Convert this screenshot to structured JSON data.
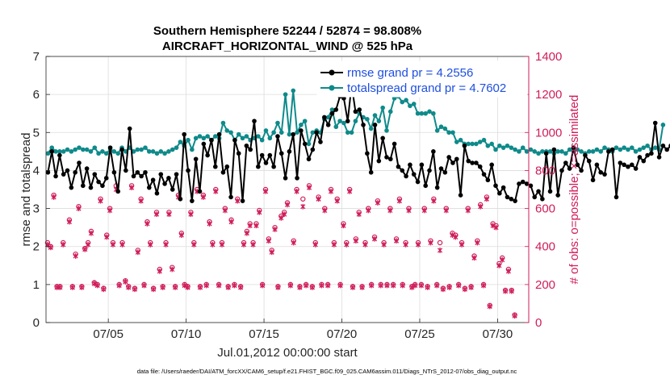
{
  "chart_data": {
    "type": "line",
    "title": [
      "Southern Hemisphere 52244 / 52874 = 98.808%",
      "AIRCRAFT_HORIZONTAL_WIND @ 525 hPa"
    ],
    "xlabel": "Jul.01,2012 00:00:00 start",
    "ylabel": "rmse and totalspread",
    "ylabel_right": "# of obs: o=possible; ×=assimilated",
    "xlim": [
      0,
      31
    ],
    "ylim": [
      0,
      7
    ],
    "ylim_right": [
      0,
      1400
    ],
    "xticks": [
      4,
      9,
      14,
      19,
      24,
      29
    ],
    "xtick_labels": [
      "07/05",
      "07/10",
      "07/15",
      "07/20",
      "07/25",
      "07/30"
    ],
    "yticks": [
      0,
      1,
      2,
      3,
      4,
      5,
      6,
      7
    ],
    "yticks_right": [
      0,
      200,
      400,
      600,
      800,
      1000,
      1200,
      1400
    ],
    "legend_placement": "top-right",
    "footnote": "data file: /Users/raeder/DAI/ATM_forcXX/CAM6_setup/f.e21.FHIST_BGC.f09_025.CAM6assim.011/Diags_NTrS_2012-07/obs_diag_output.nc",
    "colors": {
      "rmse": "#000000",
      "spread": "#0f8a8a",
      "obs": "#d01c5a",
      "legend_text": "#1f4fe0"
    },
    "series": [
      {
        "name": "rmse grand pr = 4.2556",
        "step": 0.25,
        "values": [
          3.95,
          4.5,
          3.85,
          4.4,
          3.9,
          4.0,
          3.55,
          3.95,
          4.2,
          3.6,
          4.05,
          3.55,
          3.9,
          3.7,
          3.6,
          3.8,
          4.6,
          3.95,
          3.45,
          4.55,
          4.0,
          5.1,
          3.85,
          3.95,
          3.85,
          3.95,
          3.55,
          3.75,
          3.4,
          3.9,
          3.65,
          3.8,
          3.5,
          3.9,
          3.25,
          4.95,
          4.0,
          3.2,
          4.3,
          3.45,
          4.7,
          4.4,
          4.8,
          4.1,
          4.95,
          3.95,
          4.1,
          3.3,
          4.8,
          4.45,
          3.2,
          4.65,
          4.55,
          5.3,
          4.1,
          4.4,
          4.2,
          4.4,
          4.1,
          4.9,
          4.45,
          3.8,
          4.5,
          4.95,
          3.8,
          5.05,
          4.7,
          4.3,
          4.55,
          5.0,
          4.75,
          5.4,
          5.2,
          5.5,
          5.6,
          5.95,
          5.9,
          5.3,
          6.25,
          5.55,
          5.6,
          5.2,
          4.45,
          3.95,
          5.2,
          4.25,
          4.85,
          4.35,
          4.3,
          4.7,
          4.1,
          4.0,
          3.85,
          4.15,
          3.9,
          3.7,
          4.15,
          3.6,
          4.0,
          4.5,
          3.55,
          4.05,
          3.95,
          4.35,
          4.2,
          4.3,
          3.35,
          4.65,
          4.25,
          4.2,
          4.2,
          4.1,
          3.9,
          3.75,
          4.15,
          3.6,
          3.4,
          3.55,
          3.3,
          3.25,
          3.2,
          3.65,
          3.7,
          3.65,
          3.6,
          3.3,
          3.45,
          3.25,
          4.45,
          3.45,
          4.55,
          3.35,
          4.0,
          4.2,
          4.05,
          4.6,
          4.15,
          4.0,
          4.4,
          4.25,
          3.75,
          4.15,
          3.95,
          3.9,
          4.5,
          4.55,
          3.3,
          4.2,
          4.15,
          4.1,
          4.15,
          4.05,
          4.35,
          4.25,
          4.4,
          4.45,
          5.25,
          4.35,
          4.65,
          4.55,
          4.65
        ]
      },
      {
        "name": "totalspread grand pr = 4.7602",
        "step": 0.25,
        "values": [
          4.45,
          4.6,
          4.5,
          4.5,
          4.5,
          4.55,
          4.5,
          4.55,
          4.6,
          4.55,
          4.55,
          4.5,
          4.6,
          4.45,
          4.5,
          4.45,
          4.55,
          4.5,
          4.45,
          4.6,
          4.5,
          4.6,
          4.5,
          4.55,
          4.55,
          4.6,
          4.5,
          4.5,
          4.45,
          4.5,
          4.45,
          4.5,
          4.55,
          4.6,
          4.75,
          4.65,
          4.8,
          4.55,
          4.85,
          4.9,
          4.85,
          4.9,
          4.8,
          4.9,
          4.85,
          5.25,
          5.05,
          5.0,
          4.8,
          4.95,
          4.85,
          4.9,
          4.8,
          4.85,
          4.9,
          4.8,
          5.05,
          4.85,
          5.0,
          5.25,
          5.0,
          6.0,
          4.95,
          6.1,
          5.0,
          5.2,
          5.3,
          4.7,
          5.0,
          5.05,
          5.0,
          5.35,
          5.4,
          5.6,
          5.15,
          5.3,
          5.25,
          5.0,
          5.0,
          5.3,
          5.5,
          5.4,
          5.35,
          5.1,
          5.45,
          5.3,
          5.65,
          5.05,
          5.55,
          5.9,
          5.95,
          5.8,
          5.85,
          5.7,
          5.75,
          5.5,
          5.5,
          5.5,
          5.55,
          5.5,
          5.05,
          5.15,
          5.1,
          5.0,
          5.0,
          4.75,
          4.8,
          4.7,
          4.7,
          4.7,
          4.7,
          4.75,
          4.8,
          4.65,
          4.7,
          4.55,
          4.65,
          4.6,
          4.65,
          4.6,
          4.55,
          4.5,
          4.6,
          4.5,
          4.55,
          4.5,
          4.45,
          4.5,
          4.5,
          4.5,
          4.45,
          4.5,
          4.5,
          4.45,
          4.55,
          4.5,
          4.55,
          4.5,
          4.45,
          4.5,
          4.5,
          4.55,
          4.5,
          4.6,
          4.55,
          4.5,
          4.6,
          4.55,
          4.6,
          4.55,
          4.6,
          4.5,
          4.55,
          4.6,
          4.65,
          4.55,
          4.6,
          4.55,
          5.2
        ]
      }
    ],
    "obs_possible": [
      [
        0.1,
        420
      ],
      [
        0.3,
        400
      ],
      [
        0.5,
        670
      ],
      [
        0.7,
        190
      ],
      [
        0.9,
        190
      ],
      [
        1.1,
        420
      ],
      [
        1.5,
        540
      ],
      [
        1.7,
        190
      ],
      [
        1.9,
        360
      ],
      [
        2.1,
        610
      ],
      [
        2.3,
        190
      ],
      [
        2.5,
        390
      ],
      [
        2.7,
        420
      ],
      [
        2.9,
        480
      ],
      [
        3.1,
        210
      ],
      [
        3.3,
        200
      ],
      [
        3.5,
        650
      ],
      [
        3.7,
        180
      ],
      [
        3.9,
        460
      ],
      [
        4.1,
        600
      ],
      [
        4.3,
        420
      ],
      [
        4.5,
        720
      ],
      [
        4.7,
        200
      ],
      [
        4.9,
        420
      ],
      [
        5.1,
        220
      ],
      [
        5.3,
        190
      ],
      [
        5.5,
        720
      ],
      [
        5.7,
        180
      ],
      [
        5.9,
        380
      ],
      [
        6.1,
        650
      ],
      [
        6.3,
        200
      ],
      [
        6.5,
        530
      ],
      [
        6.7,
        420
      ],
      [
        6.9,
        180
      ],
      [
        7.1,
        580
      ],
      [
        7.3,
        280
      ],
      [
        7.5,
        190
      ],
      [
        7.7,
        420
      ],
      [
        7.9,
        580
      ],
      [
        8.1,
        290
      ],
      [
        8.3,
        190
      ],
      [
        8.5,
        670
      ],
      [
        8.7,
        470
      ],
      [
        8.9,
        200
      ],
      [
        9.1,
        190
      ],
      [
        9.3,
        580
      ],
      [
        9.5,
        420
      ],
      [
        9.7,
        700
      ],
      [
        9.9,
        190
      ],
      [
        10.1,
        670
      ],
      [
        10.3,
        200
      ],
      [
        10.5,
        530
      ],
      [
        10.7,
        420
      ],
      [
        10.9,
        700
      ],
      [
        11.1,
        200
      ],
      [
        11.3,
        420
      ],
      [
        11.5,
        600
      ],
      [
        11.7,
        190
      ],
      [
        11.9,
        540
      ],
      [
        12.1,
        200
      ],
      [
        12.3,
        650
      ],
      [
        12.5,
        190
      ],
      [
        12.7,
        420
      ],
      [
        12.9,
        480
      ],
      [
        13.1,
        520
      ],
      [
        13.3,
        420
      ],
      [
        13.5,
        520
      ],
      [
        13.7,
        590
      ],
      [
        13.9,
        200
      ],
      [
        14.1,
        700
      ],
      [
        14.3,
        440
      ],
      [
        14.5,
        380
      ],
      [
        14.7,
        500
      ],
      [
        14.9,
        190
      ],
      [
        15.1,
        560
      ],
      [
        15.3,
        580
      ],
      [
        15.5,
        630
      ],
      [
        15.7,
        200
      ],
      [
        15.9,
        430
      ],
      [
        16.1,
        700
      ],
      [
        16.3,
        190
      ],
      [
        16.5,
        650
      ],
      [
        16.7,
        200
      ],
      [
        16.9,
        720
      ],
      [
        17.1,
        190
      ],
      [
        17.3,
        420
      ],
      [
        17.5,
        660
      ],
      [
        17.7,
        200
      ],
      [
        17.9,
        600
      ],
      [
        18.1,
        200
      ],
      [
        18.3,
        700
      ],
      [
        18.5,
        420
      ],
      [
        18.7,
        650
      ],
      [
        18.9,
        200
      ],
      [
        19.1,
        520
      ],
      [
        19.3,
        420
      ],
      [
        19.5,
        700
      ],
      [
        19.7,
        190
      ],
      [
        19.9,
        440
      ],
      [
        20.1,
        580
      ],
      [
        20.3,
        190
      ],
      [
        20.5,
        420
      ],
      [
        20.7,
        600
      ],
      [
        20.9,
        200
      ],
      [
        21.1,
        450
      ],
      [
        21.3,
        640
      ],
      [
        21.5,
        200
      ],
      [
        21.7,
        420
      ],
      [
        21.9,
        200
      ],
      [
        22.1,
        600
      ],
      [
        22.3,
        200
      ],
      [
        22.5,
        440
      ],
      [
        22.7,
        650
      ],
      [
        22.9,
        200
      ],
      [
        23.1,
        420
      ],
      [
        23.3,
        600
      ],
      [
        23.5,
        190
      ],
      [
        23.7,
        200
      ],
      [
        23.9,
        420
      ],
      [
        24.1,
        200
      ],
      [
        24.3,
        600
      ],
      [
        24.5,
        190
      ],
      [
        24.7,
        430
      ],
      [
        24.9,
        650
      ],
      [
        25.1,
        200
      ],
      [
        25.3,
        420
      ],
      [
        25.5,
        180
      ],
      [
        25.7,
        600
      ],
      [
        25.9,
        190
      ],
      [
        26.1,
        470
      ],
      [
        26.3,
        460
      ],
      [
        26.5,
        200
      ],
      [
        26.7,
        420
      ],
      [
        26.9,
        180
      ],
      [
        27.1,
        600
      ],
      [
        27.3,
        190
      ],
      [
        27.5,
        350
      ],
      [
        27.7,
        430
      ],
      [
        27.9,
        620
      ],
      [
        28.1,
        200
      ],
      [
        28.3,
        660
      ],
      [
        28.5,
        90
      ],
      [
        28.7,
        520
      ],
      [
        28.9,
        510
      ],
      [
        29.1,
        310
      ],
      [
        29.3,
        340
      ],
      [
        29.5,
        170
      ],
      [
        29.7,
        280
      ],
      [
        29.9,
        170
      ],
      [
        30.1,
        40
      ]
    ],
    "obs_assimilated": [
      [
        0.1,
        410
      ],
      [
        0.3,
        395
      ],
      [
        0.5,
        660
      ],
      [
        0.7,
        185
      ],
      [
        0.9,
        185
      ],
      [
        1.1,
        410
      ],
      [
        1.5,
        530
      ],
      [
        1.7,
        185
      ],
      [
        1.9,
        350
      ],
      [
        2.1,
        600
      ],
      [
        2.3,
        185
      ],
      [
        2.5,
        385
      ],
      [
        2.7,
        410
      ],
      [
        2.9,
        470
      ],
      [
        3.1,
        205
      ],
      [
        3.3,
        195
      ],
      [
        3.5,
        640
      ],
      [
        3.7,
        175
      ],
      [
        3.9,
        450
      ],
      [
        4.1,
        590
      ],
      [
        4.3,
        410
      ],
      [
        4.5,
        700
      ],
      [
        4.7,
        195
      ],
      [
        4.9,
        410
      ],
      [
        5.1,
        215
      ],
      [
        5.3,
        185
      ],
      [
        5.5,
        710
      ],
      [
        5.7,
        175
      ],
      [
        5.9,
        370
      ],
      [
        6.1,
        640
      ],
      [
        6.3,
        195
      ],
      [
        6.5,
        520
      ],
      [
        6.7,
        410
      ],
      [
        6.9,
        175
      ],
      [
        7.1,
        570
      ],
      [
        7.3,
        270
      ],
      [
        7.5,
        185
      ],
      [
        7.7,
        410
      ],
      [
        7.9,
        570
      ],
      [
        8.1,
        280
      ],
      [
        8.3,
        185
      ],
      [
        8.5,
        660
      ],
      [
        8.7,
        460
      ],
      [
        8.9,
        195
      ],
      [
        9.1,
        185
      ],
      [
        9.3,
        570
      ],
      [
        9.5,
        410
      ],
      [
        9.7,
        690
      ],
      [
        9.9,
        185
      ],
      [
        10.1,
        660
      ],
      [
        10.3,
        195
      ],
      [
        10.5,
        520
      ],
      [
        10.7,
        410
      ],
      [
        10.9,
        690
      ],
      [
        11.1,
        195
      ],
      [
        11.3,
        410
      ],
      [
        11.5,
        590
      ],
      [
        11.7,
        185
      ],
      [
        11.9,
        530
      ],
      [
        12.1,
        195
      ],
      [
        12.3,
        640
      ],
      [
        12.5,
        185
      ],
      [
        12.7,
        410
      ],
      [
        12.9,
        470
      ],
      [
        13.1,
        510
      ],
      [
        13.3,
        410
      ],
      [
        13.5,
        510
      ],
      [
        13.7,
        580
      ],
      [
        13.9,
        195
      ],
      [
        14.1,
        690
      ],
      [
        14.3,
        430
      ],
      [
        14.5,
        370
      ],
      [
        14.7,
        490
      ],
      [
        14.9,
        185
      ],
      [
        15.1,
        550
      ],
      [
        15.3,
        570
      ],
      [
        15.5,
        620
      ],
      [
        15.7,
        195
      ],
      [
        15.9,
        420
      ],
      [
        16.1,
        690
      ],
      [
        16.3,
        185
      ],
      [
        16.5,
        610
      ],
      [
        16.7,
        195
      ],
      [
        16.9,
        710
      ],
      [
        17.1,
        185
      ],
      [
        17.3,
        410
      ],
      [
        17.5,
        650
      ],
      [
        17.7,
        195
      ],
      [
        17.9,
        590
      ],
      [
        18.1,
        195
      ],
      [
        18.3,
        690
      ],
      [
        18.5,
        410
      ],
      [
        18.7,
        640
      ],
      [
        18.9,
        195
      ],
      [
        19.1,
        510
      ],
      [
        19.3,
        410
      ],
      [
        19.5,
        690
      ],
      [
        19.7,
        185
      ],
      [
        19.9,
        430
      ],
      [
        20.1,
        570
      ],
      [
        20.3,
        185
      ],
      [
        20.5,
        410
      ],
      [
        20.7,
        590
      ],
      [
        20.9,
        195
      ],
      [
        21.1,
        440
      ],
      [
        21.3,
        630
      ],
      [
        21.5,
        195
      ],
      [
        21.7,
        410
      ],
      [
        21.9,
        195
      ],
      [
        22.1,
        590
      ],
      [
        22.3,
        195
      ],
      [
        22.5,
        430
      ],
      [
        22.7,
        640
      ],
      [
        22.9,
        195
      ],
      [
        23.1,
        410
      ],
      [
        23.3,
        590
      ],
      [
        23.5,
        185
      ],
      [
        23.7,
        195
      ],
      [
        23.9,
        410
      ],
      [
        24.1,
        195
      ],
      [
        24.3,
        590
      ],
      [
        24.5,
        185
      ],
      [
        24.7,
        420
      ],
      [
        24.9,
        640
      ],
      [
        25.1,
        195
      ],
      [
        25.3,
        380
      ],
      [
        25.5,
        175
      ],
      [
        25.7,
        590
      ],
      [
        25.9,
        185
      ],
      [
        26.1,
        460
      ],
      [
        26.3,
        450
      ],
      [
        26.5,
        195
      ],
      [
        26.7,
        410
      ],
      [
        26.9,
        175
      ],
      [
        27.1,
        590
      ],
      [
        27.3,
        185
      ],
      [
        27.5,
        340
      ],
      [
        27.7,
        420
      ],
      [
        27.9,
        610
      ],
      [
        28.1,
        195
      ],
      [
        28.3,
        650
      ],
      [
        28.5,
        85
      ],
      [
        28.7,
        510
      ],
      [
        28.9,
        500
      ],
      [
        29.1,
        300
      ],
      [
        29.3,
        330
      ],
      [
        29.5,
        165
      ],
      [
        29.7,
        270
      ],
      [
        29.9,
        165
      ],
      [
        30.1,
        35
      ]
    ]
  }
}
